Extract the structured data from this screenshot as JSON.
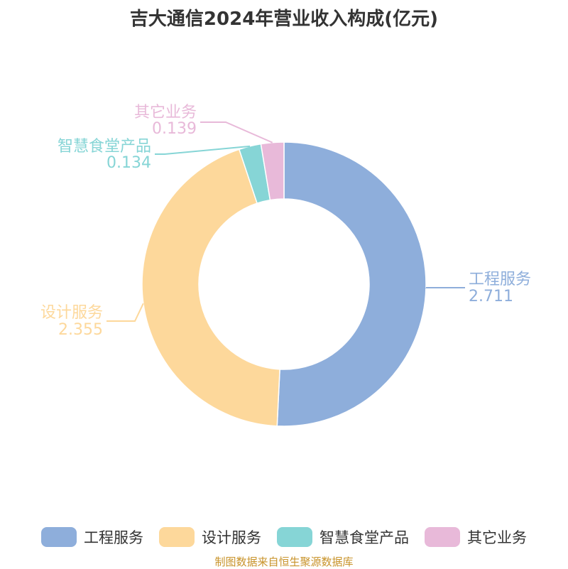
{
  "title": "吉大通信2024年营业收入构成(亿元)",
  "source": "制图数据来自恒生聚源数据库",
  "chart_data": {
    "type": "pie",
    "donut": true,
    "title": "吉大通信2024年营业收入构成(亿元)",
    "legend_position": "bottom",
    "slices": [
      {
        "label": "工程服务",
        "value": 2.711,
        "value_text": "2.711",
        "color": "#8eaedb"
      },
      {
        "label": "设计服务",
        "value": 2.355,
        "value_text": "2.355",
        "color": "#fdd89b"
      },
      {
        "label": "智慧食堂产品",
        "value": 0.134,
        "value_text": "0.134",
        "color": "#86d5d6"
      },
      {
        "label": "其它业务",
        "value": 0.139,
        "value_text": "0.139",
        "color": "#e8b9d9"
      }
    ]
  }
}
